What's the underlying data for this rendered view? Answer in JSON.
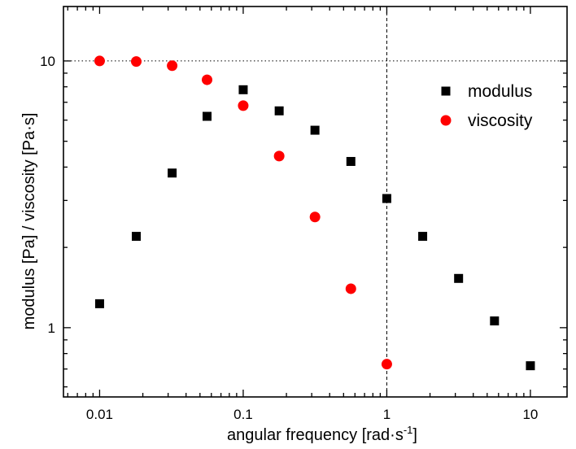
{
  "chart_data": {
    "type": "scatter",
    "title": "",
    "xlabel": "angular frequency [rad·s",
    "xlabel_superscript": "-1",
    "xlabel_suffix": "]",
    "ylabel": "modulus [Pa] / viscosity [Pa·s]",
    "xscale": "log",
    "yscale": "log",
    "xlim": [
      0.0056,
      18
    ],
    "ylim": [
      0.55,
      16
    ],
    "xticks": [
      0.01,
      0.1,
      1,
      10
    ],
    "xtick_labels": [
      "0.01",
      "0.1",
      "1",
      "10"
    ],
    "yticks": [
      1,
      10
    ],
    "ytick_labels": [
      "1",
      "10"
    ],
    "reference_lines": {
      "horizontal_y": 10,
      "vertical_x": 1
    },
    "legend_position": "top-right",
    "series": [
      {
        "name": "modulus",
        "marker": "square",
        "color": "#000000",
        "x": [
          0.01,
          0.018,
          0.032,
          0.056,
          0.1,
          0.178,
          0.316,
          0.562,
          1.0,
          1.778,
          3.162,
          5.623,
          10.0
        ],
        "y": [
          1.23,
          2.2,
          3.8,
          6.2,
          7.8,
          6.5,
          5.5,
          4.2,
          3.05,
          2.2,
          1.53,
          1.06,
          0.72
        ]
      },
      {
        "name": "viscosity",
        "marker": "circle",
        "color": "#ff0000",
        "x": [
          0.01,
          0.018,
          0.032,
          0.056,
          0.1,
          0.178,
          0.316,
          0.562,
          1.0
        ],
        "y": [
          10.0,
          9.95,
          9.6,
          8.5,
          6.8,
          4.4,
          2.6,
          1.4,
          0.73
        ]
      }
    ]
  }
}
